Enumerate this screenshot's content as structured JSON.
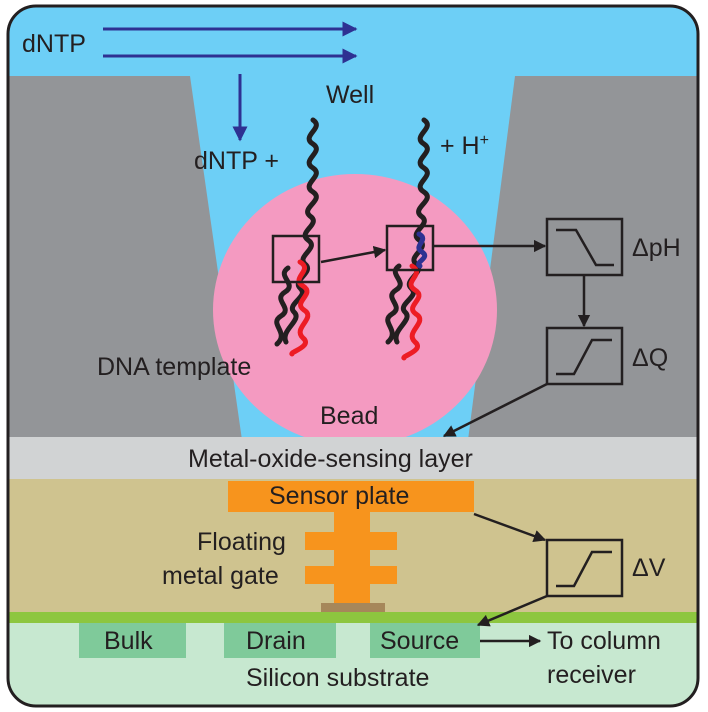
{
  "labels": {
    "dntp_top": "dNTP",
    "well": "Well",
    "dntp_plus": "dNTP +",
    "plus_h": "+ H",
    "plus_h_sup": "+",
    "delta_ph": "ΔpH",
    "delta_q": "ΔQ",
    "delta_v": "ΔV",
    "dna_template": "DNA template",
    "bead": "Bead",
    "metal_oxide": "Metal-oxide-sensing layer",
    "sensor_plate": "Sensor plate",
    "floating_1": "Floating",
    "floating_2": "metal gate",
    "bulk": "Bulk",
    "drain": "Drain",
    "source": "Source",
    "to_column_1": "To column",
    "to_column_2": "receiver",
    "silicon": "Silicon substrate"
  },
  "colors": {
    "liquid": "#6dcff6",
    "wall": "#939598",
    "bead": "#f49ac1",
    "sensing_layer": "#d1d3d4",
    "substrate_upper": "#cfc38f",
    "sensor_orange": "#f7941d",
    "gate_base": "#a6875a",
    "green_line": "#8dc63f",
    "silicon": "#c7e8d0",
    "terminal": "#7fca9a",
    "arrow_blue": "#2e3192",
    "dna_black": "#231f20",
    "dna_red": "#ed1c24",
    "dna_blue": "#2e3192",
    "border": "#231f20"
  }
}
